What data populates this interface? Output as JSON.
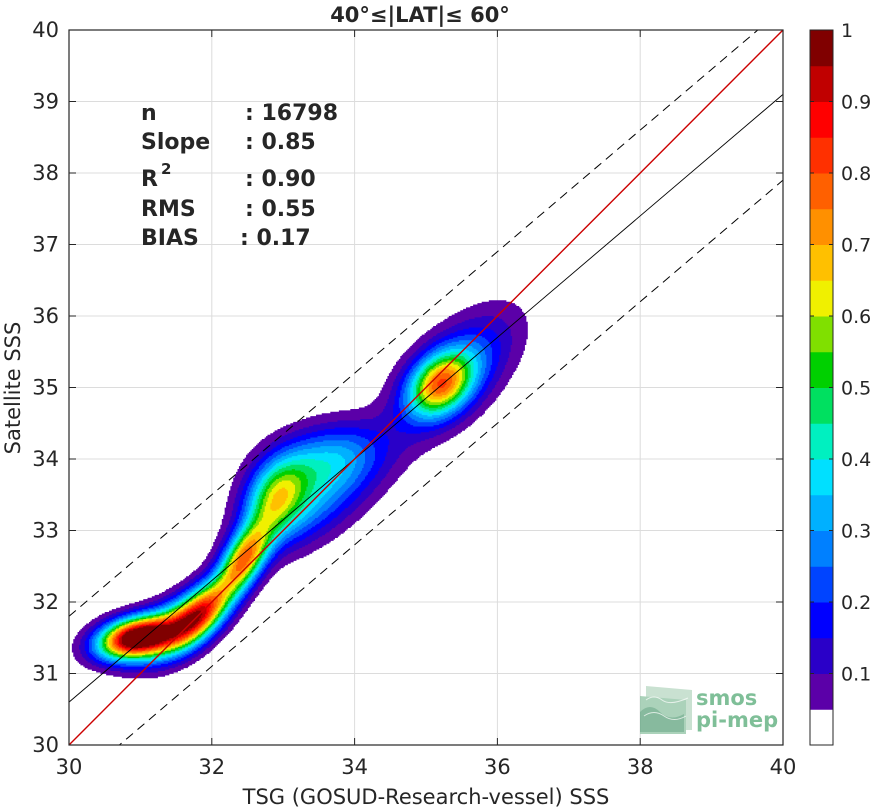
{
  "chart_data": {
    "type": "heatmap",
    "title": "40°≤|LAT|≤ 60°",
    "xlabel": "TSG (GOSUD-Research-vessel) SSS",
    "ylabel": "Satellite SSS",
    "xlim": [
      30,
      40
    ],
    "ylim": [
      30,
      40
    ],
    "x_ticks": [
      "30",
      "32",
      "34",
      "36",
      "38",
      "40"
    ],
    "x_tick_values": [
      30,
      32,
      34,
      36,
      38,
      40
    ],
    "y_ticks": [
      "30",
      "31",
      "32",
      "33",
      "34",
      "35",
      "36",
      "37",
      "38",
      "39",
      "40"
    ],
    "y_tick_values": [
      30,
      31,
      32,
      33,
      34,
      35,
      36,
      37,
      38,
      39,
      40
    ],
    "grid": true,
    "stats": [
      {
        "name": "n",
        "value": ": 16798"
      },
      {
        "name": "Slope",
        "value": ": 0.85"
      },
      {
        "name": "R",
        "sup": "2",
        "value": ": 0.90"
      },
      {
        "name": "RMS",
        "value": ": 0.55"
      },
      {
        "name": "BIAS",
        "value": ": 0.17"
      }
    ],
    "lines": {
      "identity": {
        "slope": 1,
        "intercept": 0,
        "color": "#cc0000"
      },
      "fit": {
        "slope": 0.85,
        "intercept": 5.1
      },
      "fit_plus": {
        "slope": 0.85,
        "intercept": 6.3
      },
      "fit_minus": {
        "slope": 0.85,
        "intercept": 3.9
      }
    },
    "density_clusters": [
      {
        "cx": 30.9,
        "cy": 31.5,
        "sx": 0.35,
        "sy": 0.2,
        "rho": 0.3,
        "peak": 1.0
      },
      {
        "cx": 31.4,
        "cy": 31.6,
        "sx": 0.35,
        "sy": 0.3,
        "rho": 0.5,
        "peak": 0.45
      },
      {
        "cx": 31.85,
        "cy": 31.85,
        "sx": 0.3,
        "sy": 0.32,
        "rho": 0.6,
        "peak": 0.72
      },
      {
        "cx": 32.45,
        "cy": 32.6,
        "sx": 0.25,
        "sy": 0.35,
        "rho": 0.6,
        "peak": 0.68
      },
      {
        "cx": 32.9,
        "cy": 33.5,
        "sx": 0.3,
        "sy": 0.35,
        "rho": 0.3,
        "peak": 0.45
      },
      {
        "cx": 33.3,
        "cy": 33.3,
        "sx": 0.6,
        "sy": 0.45,
        "rho": 0.6,
        "peak": 0.25
      },
      {
        "cx": 33.6,
        "cy": 34.0,
        "sx": 0.55,
        "sy": 0.35,
        "rho": 0.3,
        "peak": 0.3
      },
      {
        "cx": 35.2,
        "cy": 35.05,
        "sx": 0.3,
        "sy": 0.3,
        "rho": 0.3,
        "peak": 0.55
      },
      {
        "cx": 35.4,
        "cy": 35.2,
        "sx": 0.55,
        "sy": 0.55,
        "rho": 0.6,
        "peak": 0.28
      }
    ],
    "contour_levels": [
      0.05,
      0.1,
      0.15,
      0.2,
      0.25,
      0.3,
      0.35,
      0.4,
      0.45,
      0.5,
      0.55,
      0.6,
      0.65,
      0.7,
      0.75,
      0.8,
      0.85,
      0.9,
      0.95
    ],
    "colorbar": {
      "ticks": [
        "0.1",
        "0.2",
        "0.3",
        "0.4",
        "0.5",
        "0.6",
        "0.7",
        "0.8",
        "0.9",
        "1"
      ],
      "tick_values": [
        0.1,
        0.2,
        0.3,
        0.4,
        0.5,
        0.6,
        0.7,
        0.8,
        0.9,
        1.0
      ],
      "colors": [
        "#ffffff",
        "#5b00a8",
        "#2a00c8",
        "#0000ff",
        "#0044ff",
        "#0080ff",
        "#00b0ff",
        "#00e0ff",
        "#00f0c0",
        "#00e060",
        "#00d000",
        "#80e000",
        "#f0f000",
        "#ffc000",
        "#ff9000",
        "#ff6000",
        "#ff3000",
        "#ff0000",
        "#c00000",
        "#800000"
      ]
    },
    "watermark": {
      "line1": "smos",
      "line2": "pi-mep"
    }
  }
}
